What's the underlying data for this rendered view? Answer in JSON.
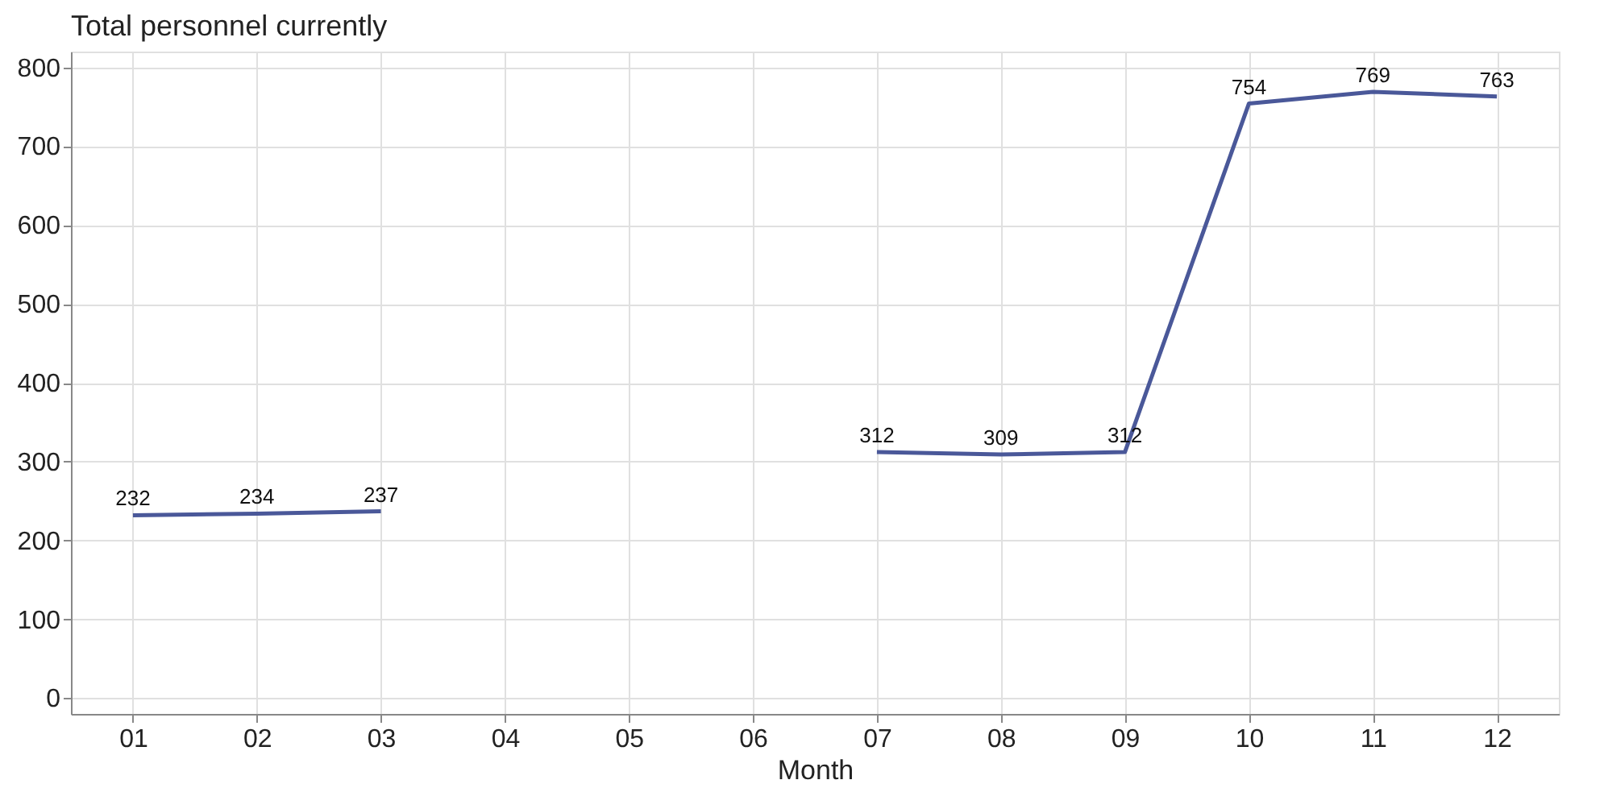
{
  "chart_data": {
    "type": "line",
    "title": "Total personnel currently",
    "xlabel": "Month",
    "categories": [
      "01",
      "02",
      "03",
      "04",
      "05",
      "06",
      "07",
      "08",
      "09",
      "10",
      "11",
      "12"
    ],
    "series": [
      {
        "color": "#4a5899",
        "values": [
          232,
          234,
          237,
          null,
          null,
          null,
          312,
          309,
          312,
          754,
          769,
          763
        ]
      }
    ],
    "ylim": [
      -20,
      820
    ],
    "yticks": [
      0,
      100,
      200,
      300,
      400,
      500,
      600,
      700,
      800
    ],
    "grid": true,
    "data_labels": true,
    "marker": "none",
    "line_style": "solid"
  }
}
